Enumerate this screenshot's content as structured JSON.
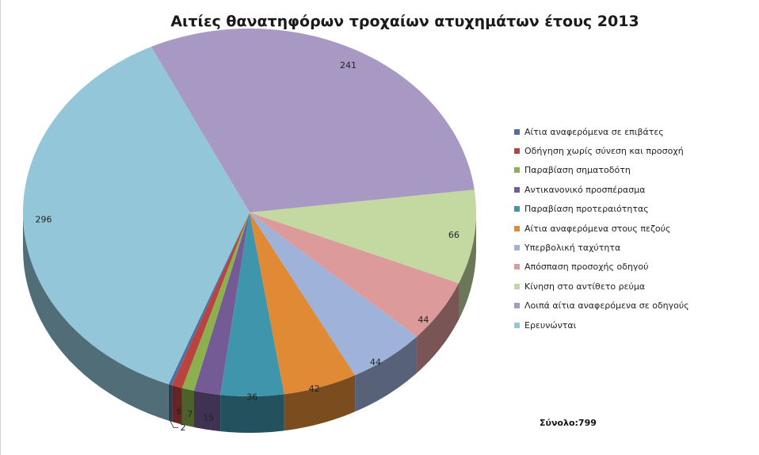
{
  "chart_data": {
    "type": "pie",
    "title": "Αιτίες θανατηφόρων τροχαίων ατυχημάτων έτους 2013",
    "legend_position": "right",
    "total_label": "Σύνολο:799",
    "slices": [
      {
        "label": "Αίτια αναφερόμενα σε επιβάτες",
        "value": 2,
        "color": "#4f6fa3"
      },
      {
        "label": "Οδήγηση χωρίς σύνεση και προσοχή",
        "value": 6,
        "color": "#b8433f"
      },
      {
        "label": "Παραβίαση σηματοδότη",
        "value": 7,
        "color": "#8db04e"
      },
      {
        "label": "Αντικανονικό προσπέρασμα",
        "value": 15,
        "color": "#745b96"
      },
      {
        "label": "Παραβίαση προτεραιότητας",
        "value": 36,
        "color": "#3f95ab"
      },
      {
        "label": "Αίτια αναφερόμενα στους πεζούς",
        "value": 42,
        "color": "#e08a36"
      },
      {
        "label": "Υπερβολική ταχύτητα",
        "value": 44,
        "color": "#9fb2da"
      },
      {
        "label": "Απόσπαση προσοχής οδηγού",
        "value": 44,
        "color": "#dc9a9a"
      },
      {
        "label": "Κίνηση στο αντίθετο ρεύμα",
        "value": 66,
        "color": "#c4d9a1"
      },
      {
        "label": "Λοιπά αίτια αναφερόμενα σε οδηγούς",
        "value": 241,
        "color": "#a898c4"
      },
      {
        "label": "Ερευνώνται",
        "value": 296,
        "color": "#94c6d9"
      }
    ]
  }
}
